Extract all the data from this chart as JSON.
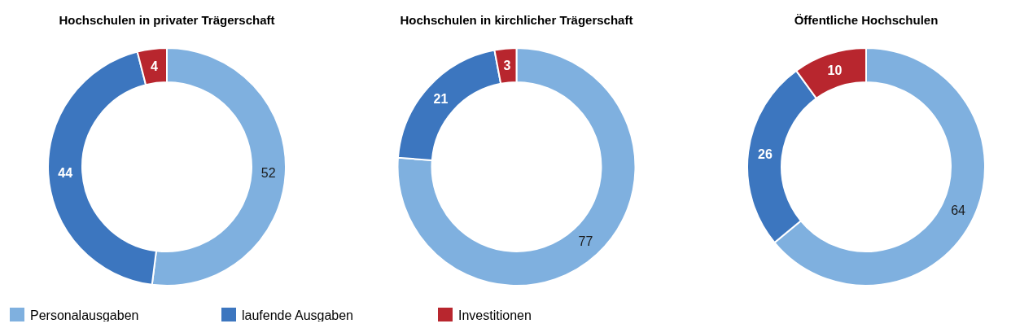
{
  "chart_data": [
    {
      "type": "donut",
      "title": "Hochschulen in privater Trägerschaft",
      "categories": [
        "Personalausgaben",
        "laufende Ausgaben",
        "Investitionen"
      ],
      "values": [
        52,
        44,
        4
      ],
      "colors": [
        "#7fb0df",
        "#3c76bf",
        "#b8262e"
      ],
      "data_labels": true,
      "legend": "bottom"
    },
    {
      "type": "donut",
      "title": "Hochschulen in kirchlicher Trägerschaft",
      "categories": [
        null,
        null,
        null
      ],
      "values": [
        77,
        21,
        3
      ],
      "colors": [
        "#7fb0df",
        "#3c76bf",
        "#b8262e"
      ],
      "data_labels": true
    },
    {
      "type": "donut",
      "title": "Öffentliche Hochschulen",
      "categories": [
        null,
        null,
        null
      ],
      "values": [
        64,
        26,
        10
      ],
      "colors": [
        "#7fb0df",
        "#3c76bf",
        "#b8262e"
      ],
      "data_labels": true
    }
  ]
}
